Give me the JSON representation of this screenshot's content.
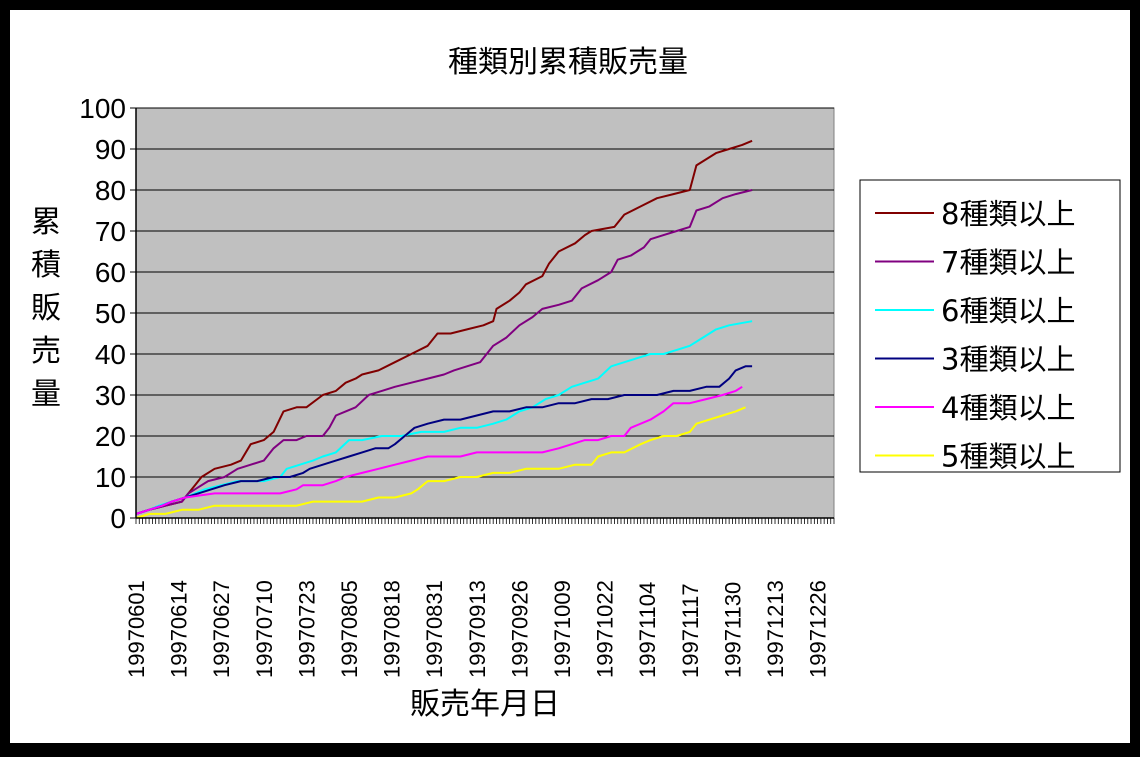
{
  "chart_data": {
    "type": "line",
    "title": "種類別累積販売量",
    "xlabel": "販売年月日",
    "ylabel": "累積販売量",
    "ylim": [
      0,
      100
    ],
    "yticks": [
      0,
      10,
      20,
      30,
      40,
      50,
      60,
      70,
      80,
      90,
      100
    ],
    "xlim": [
      1,
      214
    ],
    "xticks": [
      {
        "x": 1,
        "label": "19970601"
      },
      {
        "x": 14,
        "label": "19970614"
      },
      {
        "x": 27,
        "label": "19970627"
      },
      {
        "x": 40,
        "label": "19970710"
      },
      {
        "x": 53,
        "label": "19970723"
      },
      {
        "x": 66,
        "label": "19970805"
      },
      {
        "x": 79,
        "label": "19970818"
      },
      {
        "x": 92,
        "label": "19970831"
      },
      {
        "x": 105,
        "label": "19970913"
      },
      {
        "x": 118,
        "label": "19970926"
      },
      {
        "x": 131,
        "label": "19971009"
      },
      {
        "x": 144,
        "label": "19971022"
      },
      {
        "x": 157,
        "label": "19971104"
      },
      {
        "x": 170,
        "label": "19971117"
      },
      {
        "x": 183,
        "label": "19971130"
      },
      {
        "x": 196,
        "label": "19971213"
      },
      {
        "x": 209,
        "label": "19971226"
      }
    ],
    "plot_background": "#c0c0c0",
    "grid": "horizontal",
    "legend_position": "right",
    "series": [
      {
        "name": "8種類以上",
        "color": "#800000",
        "points": [
          [
            1,
            1
          ],
          [
            5,
            2
          ],
          [
            10,
            3
          ],
          [
            15,
            4
          ],
          [
            17,
            6
          ],
          [
            19,
            8
          ],
          [
            21,
            10
          ],
          [
            25,
            12
          ],
          [
            30,
            13
          ],
          [
            33,
            14
          ],
          [
            36,
            18
          ],
          [
            40,
            19
          ],
          [
            43,
            21
          ],
          [
            46,
            26
          ],
          [
            50,
            27
          ],
          [
            53,
            27
          ],
          [
            58,
            30
          ],
          [
            62,
            31
          ],
          [
            65,
            33
          ],
          [
            68,
            34
          ],
          [
            70,
            35
          ],
          [
            75,
            36
          ],
          [
            80,
            38
          ],
          [
            85,
            40
          ],
          [
            90,
            42
          ],
          [
            93,
            45
          ],
          [
            97,
            45
          ],
          [
            102,
            46
          ],
          [
            107,
            47
          ],
          [
            110,
            48
          ],
          [
            111,
            51
          ],
          [
            115,
            53
          ],
          [
            118,
            55
          ],
          [
            120,
            57
          ],
          [
            125,
            59
          ],
          [
            127,
            62
          ],
          [
            130,
            65
          ],
          [
            135,
            67
          ],
          [
            138,
            69
          ],
          [
            140,
            70
          ],
          [
            147,
            71
          ],
          [
            150,
            74
          ],
          [
            155,
            76
          ],
          [
            160,
            78
          ],
          [
            165,
            79
          ],
          [
            170,
            80
          ],
          [
            172,
            86
          ],
          [
            178,
            89
          ],
          [
            182,
            90
          ],
          [
            186,
            91
          ],
          [
            189,
            92
          ]
        ]
      },
      {
        "name": "7種類以上",
        "color": "#800080",
        "points": [
          [
            1,
            1
          ],
          [
            5,
            2
          ],
          [
            10,
            3
          ],
          [
            15,
            4
          ],
          [
            17,
            6
          ],
          [
            19,
            7
          ],
          [
            23,
            9
          ],
          [
            28,
            10
          ],
          [
            32,
            12
          ],
          [
            36,
            13
          ],
          [
            40,
            14
          ],
          [
            43,
            17
          ],
          [
            46,
            19
          ],
          [
            50,
            19
          ],
          [
            53,
            20
          ],
          [
            58,
            20
          ],
          [
            60,
            22
          ],
          [
            62,
            25
          ],
          [
            65,
            26
          ],
          [
            68,
            27
          ],
          [
            72,
            30
          ],
          [
            76,
            31
          ],
          [
            80,
            32
          ],
          [
            85,
            33
          ],
          [
            90,
            34
          ],
          [
            95,
            35
          ],
          [
            98,
            36
          ],
          [
            102,
            37
          ],
          [
            106,
            38
          ],
          [
            110,
            42
          ],
          [
            114,
            44
          ],
          [
            118,
            47
          ],
          [
            122,
            49
          ],
          [
            125,
            51
          ],
          [
            130,
            52
          ],
          [
            134,
            53
          ],
          [
            137,
            56
          ],
          [
            142,
            58
          ],
          [
            146,
            60
          ],
          [
            148,
            63
          ],
          [
            152,
            64
          ],
          [
            156,
            66
          ],
          [
            158,
            68
          ],
          [
            162,
            69
          ],
          [
            166,
            70
          ],
          [
            170,
            71
          ],
          [
            172,
            75
          ],
          [
            176,
            76
          ],
          [
            180,
            78
          ],
          [
            184,
            79
          ],
          [
            189,
            80
          ]
        ]
      },
      {
        "name": "6種類以上",
        "color": "#00ffff",
        "points": [
          [
            1,
            1
          ],
          [
            5,
            2
          ],
          [
            8,
            3
          ],
          [
            12,
            4
          ],
          [
            16,
            5
          ],
          [
            22,
            7
          ],
          [
            27,
            8
          ],
          [
            32,
            9
          ],
          [
            40,
            9
          ],
          [
            45,
            10
          ],
          [
            47,
            12
          ],
          [
            51,
            13
          ],
          [
            55,
            14
          ],
          [
            58,
            15
          ],
          [
            62,
            16
          ],
          [
            66,
            19
          ],
          [
            70,
            19
          ],
          [
            76,
            20
          ],
          [
            82,
            20
          ],
          [
            88,
            21
          ],
          [
            95,
            21
          ],
          [
            100,
            22
          ],
          [
            105,
            22
          ],
          [
            110,
            23
          ],
          [
            114,
            24
          ],
          [
            118,
            26
          ],
          [
            122,
            27
          ],
          [
            126,
            29
          ],
          [
            130,
            30
          ],
          [
            134,
            32
          ],
          [
            138,
            33
          ],
          [
            142,
            34
          ],
          [
            146,
            37
          ],
          [
            150,
            38
          ],
          [
            154,
            39
          ],
          [
            158,
            40
          ],
          [
            162,
            40
          ],
          [
            166,
            41
          ],
          [
            170,
            42
          ],
          [
            174,
            44
          ],
          [
            178,
            46
          ],
          [
            182,
            47
          ],
          [
            189,
            48
          ]
        ]
      },
      {
        "name": "3種類以上",
        "color": "#000080",
        "points": [
          [
            1,
            1
          ],
          [
            5,
            2
          ],
          [
            9,
            3
          ],
          [
            12,
            4
          ],
          [
            16,
            5
          ],
          [
            20,
            6
          ],
          [
            24,
            7
          ],
          [
            28,
            8
          ],
          [
            33,
            9
          ],
          [
            38,
            9
          ],
          [
            43,
            10
          ],
          [
            48,
            10
          ],
          [
            52,
            11
          ],
          [
            54,
            12
          ],
          [
            58,
            13
          ],
          [
            62,
            14
          ],
          [
            66,
            15
          ],
          [
            70,
            16
          ],
          [
            74,
            17
          ],
          [
            78,
            17
          ],
          [
            80,
            18
          ],
          [
            83,
            20
          ],
          [
            86,
            22
          ],
          [
            90,
            23
          ],
          [
            95,
            24
          ],
          [
            100,
            24
          ],
          [
            105,
            25
          ],
          [
            110,
            26
          ],
          [
            115,
            26
          ],
          [
            120,
            27
          ],
          [
            125,
            27
          ],
          [
            130,
            28
          ],
          [
            135,
            28
          ],
          [
            140,
            29
          ],
          [
            145,
            29
          ],
          [
            150,
            30
          ],
          [
            155,
            30
          ],
          [
            160,
            30
          ],
          [
            165,
            31
          ],
          [
            170,
            31
          ],
          [
            175,
            32
          ],
          [
            179,
            32
          ],
          [
            182,
            34
          ],
          [
            184,
            36
          ],
          [
            187,
            37
          ],
          [
            189,
            37
          ]
        ]
      },
      {
        "name": "4種類以上",
        "color": "#ff00ff",
        "points": [
          [
            1,
            1
          ],
          [
            5,
            2
          ],
          [
            9,
            3
          ],
          [
            12,
            4
          ],
          [
            16,
            5
          ],
          [
            25,
            6
          ],
          [
            35,
            6
          ],
          [
            45,
            6
          ],
          [
            50,
            7
          ],
          [
            52,
            8
          ],
          [
            58,
            8
          ],
          [
            62,
            9
          ],
          [
            65,
            10
          ],
          [
            70,
            11
          ],
          [
            75,
            12
          ],
          [
            80,
            13
          ],
          [
            85,
            14
          ],
          [
            90,
            15
          ],
          [
            95,
            15
          ],
          [
            100,
            15
          ],
          [
            105,
            16
          ],
          [
            110,
            16
          ],
          [
            115,
            16
          ],
          [
            120,
            16
          ],
          [
            125,
            16
          ],
          [
            130,
            17
          ],
          [
            134,
            18
          ],
          [
            138,
            19
          ],
          [
            142,
            19
          ],
          [
            146,
            20
          ],
          [
            150,
            20
          ],
          [
            152,
            22
          ],
          [
            158,
            24
          ],
          [
            162,
            26
          ],
          [
            165,
            28
          ],
          [
            170,
            28
          ],
          [
            175,
            29
          ],
          [
            180,
            30
          ],
          [
            184,
            31
          ],
          [
            186,
            32
          ]
        ]
      },
      {
        "name": "5種類以上",
        "color": "#ffff00",
        "points": [
          [
            1,
            0
          ],
          [
            5,
            1
          ],
          [
            10,
            1
          ],
          [
            15,
            2
          ],
          [
            20,
            2
          ],
          [
            25,
            3
          ],
          [
            30,
            3
          ],
          [
            35,
            3
          ],
          [
            40,
            3
          ],
          [
            45,
            3
          ],
          [
            50,
            3
          ],
          [
            55,
            4
          ],
          [
            60,
            4
          ],
          [
            65,
            4
          ],
          [
            70,
            4
          ],
          [
            75,
            5
          ],
          [
            80,
            5
          ],
          [
            85,
            6
          ],
          [
            87,
            7
          ],
          [
            90,
            9
          ],
          [
            95,
            9
          ],
          [
            100,
            10
          ],
          [
            105,
            10
          ],
          [
            110,
            11
          ],
          [
            115,
            11
          ],
          [
            120,
            12
          ],
          [
            125,
            12
          ],
          [
            130,
            12
          ],
          [
            135,
            13
          ],
          [
            140,
            13
          ],
          [
            142,
            15
          ],
          [
            146,
            16
          ],
          [
            150,
            16
          ],
          [
            155,
            18
          ],
          [
            158,
            19
          ],
          [
            162,
            20
          ],
          [
            166,
            20
          ],
          [
            170,
            21
          ],
          [
            172,
            23
          ],
          [
            176,
            24
          ],
          [
            180,
            25
          ],
          [
            184,
            26
          ],
          [
            187,
            27
          ]
        ]
      }
    ]
  }
}
